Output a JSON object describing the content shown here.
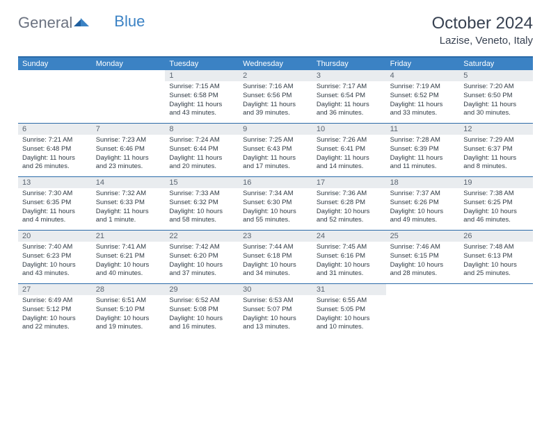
{
  "header": {
    "logo_text1": "General",
    "logo_text2": "Blue",
    "month_title": "October 2024",
    "location": "Lazise, Veneto, Italy"
  },
  "colors": {
    "header_bar": "#3b82c4",
    "header_rule": "#2a6aa8",
    "daynum_bg": "#e9ecef",
    "text": "#2f3a44"
  },
  "dow": [
    "Sunday",
    "Monday",
    "Tuesday",
    "Wednesday",
    "Thursday",
    "Friday",
    "Saturday"
  ],
  "days": [
    {
      "n": "",
      "sr": "",
      "ss": "",
      "dl": ""
    },
    {
      "n": "",
      "sr": "",
      "ss": "",
      "dl": ""
    },
    {
      "n": "1",
      "sr": "Sunrise: 7:15 AM",
      "ss": "Sunset: 6:58 PM",
      "dl": "Daylight: 11 hours and 43 minutes."
    },
    {
      "n": "2",
      "sr": "Sunrise: 7:16 AM",
      "ss": "Sunset: 6:56 PM",
      "dl": "Daylight: 11 hours and 39 minutes."
    },
    {
      "n": "3",
      "sr": "Sunrise: 7:17 AM",
      "ss": "Sunset: 6:54 PM",
      "dl": "Daylight: 11 hours and 36 minutes."
    },
    {
      "n": "4",
      "sr": "Sunrise: 7:19 AM",
      "ss": "Sunset: 6:52 PM",
      "dl": "Daylight: 11 hours and 33 minutes."
    },
    {
      "n": "5",
      "sr": "Sunrise: 7:20 AM",
      "ss": "Sunset: 6:50 PM",
      "dl": "Daylight: 11 hours and 30 minutes."
    },
    {
      "n": "6",
      "sr": "Sunrise: 7:21 AM",
      "ss": "Sunset: 6:48 PM",
      "dl": "Daylight: 11 hours and 26 minutes."
    },
    {
      "n": "7",
      "sr": "Sunrise: 7:23 AM",
      "ss": "Sunset: 6:46 PM",
      "dl": "Daylight: 11 hours and 23 minutes."
    },
    {
      "n": "8",
      "sr": "Sunrise: 7:24 AM",
      "ss": "Sunset: 6:44 PM",
      "dl": "Daylight: 11 hours and 20 minutes."
    },
    {
      "n": "9",
      "sr": "Sunrise: 7:25 AM",
      "ss": "Sunset: 6:43 PM",
      "dl": "Daylight: 11 hours and 17 minutes."
    },
    {
      "n": "10",
      "sr": "Sunrise: 7:26 AM",
      "ss": "Sunset: 6:41 PM",
      "dl": "Daylight: 11 hours and 14 minutes."
    },
    {
      "n": "11",
      "sr": "Sunrise: 7:28 AM",
      "ss": "Sunset: 6:39 PM",
      "dl": "Daylight: 11 hours and 11 minutes."
    },
    {
      "n": "12",
      "sr": "Sunrise: 7:29 AM",
      "ss": "Sunset: 6:37 PM",
      "dl": "Daylight: 11 hours and 8 minutes."
    },
    {
      "n": "13",
      "sr": "Sunrise: 7:30 AM",
      "ss": "Sunset: 6:35 PM",
      "dl": "Daylight: 11 hours and 4 minutes."
    },
    {
      "n": "14",
      "sr": "Sunrise: 7:32 AM",
      "ss": "Sunset: 6:33 PM",
      "dl": "Daylight: 11 hours and 1 minute."
    },
    {
      "n": "15",
      "sr": "Sunrise: 7:33 AM",
      "ss": "Sunset: 6:32 PM",
      "dl": "Daylight: 10 hours and 58 minutes."
    },
    {
      "n": "16",
      "sr": "Sunrise: 7:34 AM",
      "ss": "Sunset: 6:30 PM",
      "dl": "Daylight: 10 hours and 55 minutes."
    },
    {
      "n": "17",
      "sr": "Sunrise: 7:36 AM",
      "ss": "Sunset: 6:28 PM",
      "dl": "Daylight: 10 hours and 52 minutes."
    },
    {
      "n": "18",
      "sr": "Sunrise: 7:37 AM",
      "ss": "Sunset: 6:26 PM",
      "dl": "Daylight: 10 hours and 49 minutes."
    },
    {
      "n": "19",
      "sr": "Sunrise: 7:38 AM",
      "ss": "Sunset: 6:25 PM",
      "dl": "Daylight: 10 hours and 46 minutes."
    },
    {
      "n": "20",
      "sr": "Sunrise: 7:40 AM",
      "ss": "Sunset: 6:23 PM",
      "dl": "Daylight: 10 hours and 43 minutes."
    },
    {
      "n": "21",
      "sr": "Sunrise: 7:41 AM",
      "ss": "Sunset: 6:21 PM",
      "dl": "Daylight: 10 hours and 40 minutes."
    },
    {
      "n": "22",
      "sr": "Sunrise: 7:42 AM",
      "ss": "Sunset: 6:20 PM",
      "dl": "Daylight: 10 hours and 37 minutes."
    },
    {
      "n": "23",
      "sr": "Sunrise: 7:44 AM",
      "ss": "Sunset: 6:18 PM",
      "dl": "Daylight: 10 hours and 34 minutes."
    },
    {
      "n": "24",
      "sr": "Sunrise: 7:45 AM",
      "ss": "Sunset: 6:16 PM",
      "dl": "Daylight: 10 hours and 31 minutes."
    },
    {
      "n": "25",
      "sr": "Sunrise: 7:46 AM",
      "ss": "Sunset: 6:15 PM",
      "dl": "Daylight: 10 hours and 28 minutes."
    },
    {
      "n": "26",
      "sr": "Sunrise: 7:48 AM",
      "ss": "Sunset: 6:13 PM",
      "dl": "Daylight: 10 hours and 25 minutes."
    },
    {
      "n": "27",
      "sr": "Sunrise: 6:49 AM",
      "ss": "Sunset: 5:12 PM",
      "dl": "Daylight: 10 hours and 22 minutes."
    },
    {
      "n": "28",
      "sr": "Sunrise: 6:51 AM",
      "ss": "Sunset: 5:10 PM",
      "dl": "Daylight: 10 hours and 19 minutes."
    },
    {
      "n": "29",
      "sr": "Sunrise: 6:52 AM",
      "ss": "Sunset: 5:08 PM",
      "dl": "Daylight: 10 hours and 16 minutes."
    },
    {
      "n": "30",
      "sr": "Sunrise: 6:53 AM",
      "ss": "Sunset: 5:07 PM",
      "dl": "Daylight: 10 hours and 13 minutes."
    },
    {
      "n": "31",
      "sr": "Sunrise: 6:55 AM",
      "ss": "Sunset: 5:05 PM",
      "dl": "Daylight: 10 hours and 10 minutes."
    },
    {
      "n": "",
      "sr": "",
      "ss": "",
      "dl": ""
    },
    {
      "n": "",
      "sr": "",
      "ss": "",
      "dl": ""
    }
  ]
}
